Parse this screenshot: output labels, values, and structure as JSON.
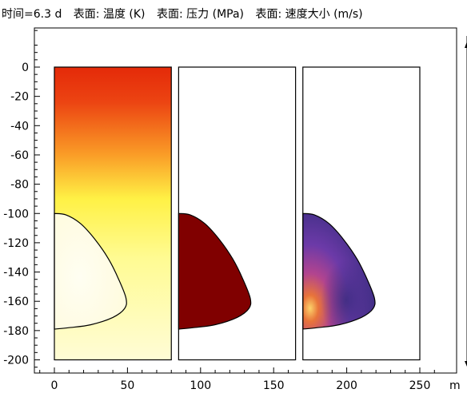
{
  "title": {
    "time_label": "时间=6.3 d",
    "panel_labels": [
      "表面: 温度 (K)",
      "表面: 压力 (MPa)",
      "表面: 速度大小 (m/s)"
    ]
  },
  "chart_data": {
    "type": "heatmap",
    "xlabel": "",
    "ylabel": "",
    "x_unit": "m",
    "xlim": [
      -15,
      265
    ],
    "ylim": [
      -208,
      34
    ],
    "x_ticks": [
      0,
      50,
      100,
      150,
      200,
      250
    ],
    "y_ticks": [
      0,
      -20,
      -40,
      -60,
      -80,
      -100,
      -120,
      -140,
      -160,
      -180,
      -200
    ],
    "panels": [
      {
        "name": "表面: 温度 (K)",
        "x_range": [
          0,
          80
        ],
        "y_range": [
          -200,
          0
        ],
        "field": "temperature",
        "colors": [
          "#e42a09",
          "#fff145",
          "#fffde8"
        ]
      },
      {
        "name": "表面: 压力 (MPa)",
        "x_range": [
          85,
          165
        ],
        "y_range": [
          -200,
          0
        ],
        "field": "pressure",
        "colors": [
          "#800000"
        ]
      },
      {
        "name": "表面: 速度大小 (m/s)",
        "x_range": [
          170,
          250
        ],
        "y_range": [
          -200,
          0
        ],
        "field": "velocity_magnitude",
        "colors": [
          "#3a2c80",
          "#9b3d9e",
          "#e8743a",
          "#fcd26a"
        ]
      }
    ],
    "cavity_outline": {
      "x": [
        0,
        8,
        18,
        28,
        37,
        44,
        49,
        48,
        40,
        25,
        10,
        0
      ],
      "y": [
        -100,
        -101,
        -107,
        -118,
        -131,
        -145,
        -158,
        -165,
        -171,
        -176,
        -178,
        -179
      ]
    },
    "axis_arrows": [
      "up",
      "down"
    ]
  }
}
